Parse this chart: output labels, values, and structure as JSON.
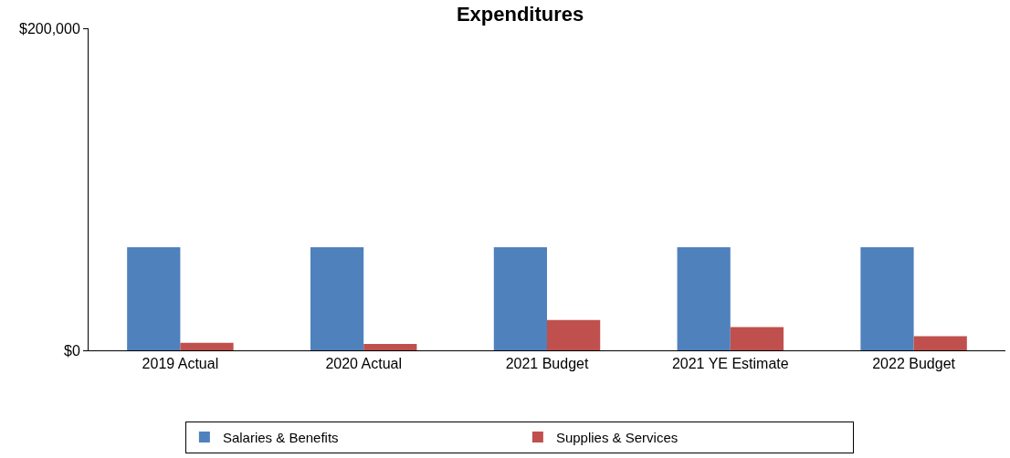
{
  "chart_data": {
    "type": "bar",
    "title": "Expenditures",
    "categories": [
      "2019 Actual",
      "2020 Actual",
      "2021 Budget",
      "2021 YE Estimate",
      "2022 Budget"
    ],
    "series": [
      {
        "name": "Salaries & Benefits",
        "color": "#4f81bd",
        "values": [
          64000,
          64000,
          64000,
          64000,
          64000
        ]
      },
      {
        "name": "Supplies & Services",
        "color": "#c0504d",
        "values": [
          4700,
          3900,
          18800,
          14400,
          8800
        ]
      }
    ],
    "ylim": [
      0,
      200000
    ],
    "yticks": [
      {
        "value": 0,
        "label": "$0"
      },
      {
        "value": 200000,
        "label": "$200,000"
      }
    ],
    "legend": "bottom"
  }
}
